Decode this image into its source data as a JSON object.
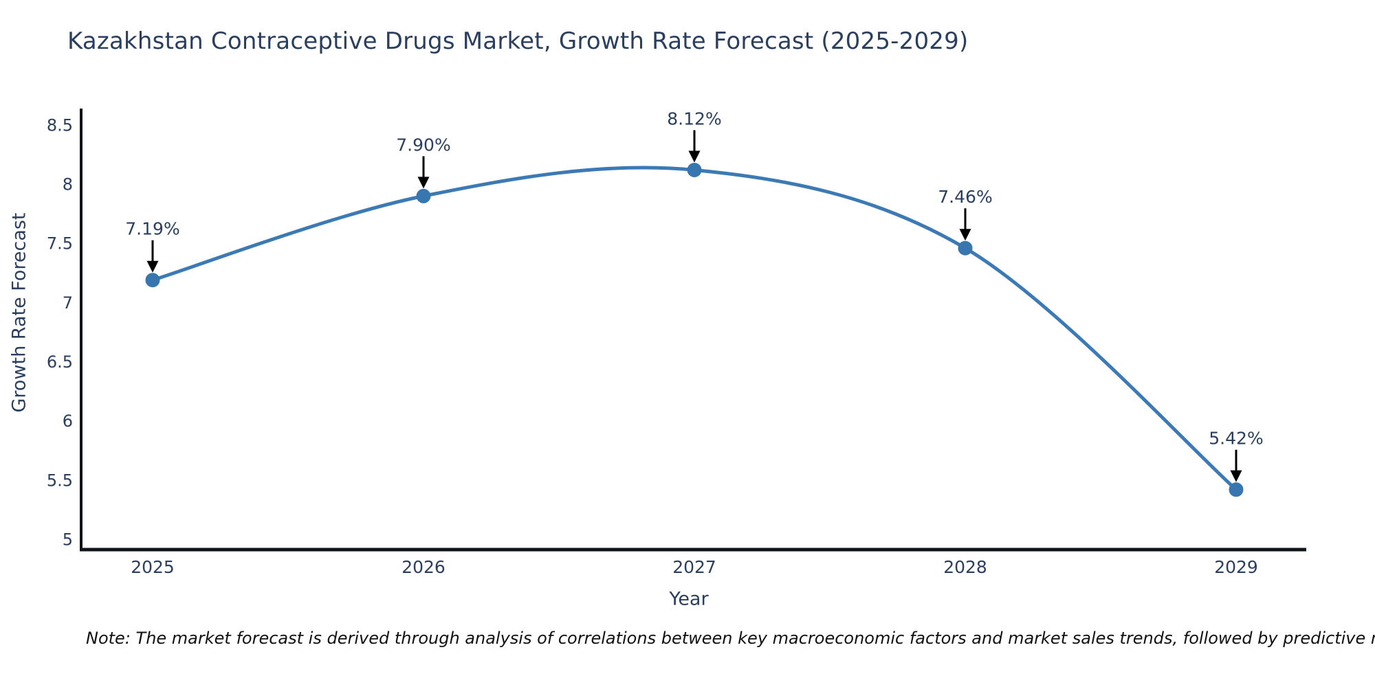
{
  "page": {
    "note": "Note: The market forecast is derived through analysis of correlations between key macroeconomic factors and market sales trends, followed by predictive modeling to project future sales"
  },
  "chart_data": {
    "type": "line",
    "title": "Kazakhstan Contraceptive Drugs Market, Growth Rate Forecast (2025-2029)",
    "xlabel": "Year",
    "ylabel": "Growth Rate Forecast",
    "categories": [
      "2025",
      "2026",
      "2027",
      "2028",
      "2029"
    ],
    "series": [
      {
        "name": "Growth Rate Forecast",
        "values": [
          7.19,
          7.9,
          8.12,
          7.46,
          5.42
        ],
        "point_labels": [
          "7.19%",
          "7.90%",
          "8.12%",
          "7.46%",
          "5.42%"
        ]
      }
    ],
    "ylim": [
      5,
      8.5
    ],
    "yticks": [
      "5",
      "5.5",
      "6",
      "6.5",
      "7",
      "7.5",
      "8",
      "8.5"
    ],
    "grid": false,
    "legend_position": "none",
    "curve": "spline",
    "colors": {
      "line": "#3c7ab5",
      "marker": "#3776ae",
      "axis": "#11131a",
      "text": "#2a3f5f",
      "annotation_arrow": "#000000"
    }
  }
}
